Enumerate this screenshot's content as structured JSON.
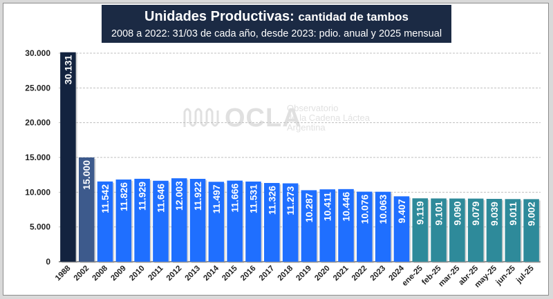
{
  "title": {
    "main": "Unidades Productivas:",
    "main_sub": "cantidad de tambos",
    "subtitle": "2008 a 2022: 31/03 de cada año, desde 2023: pdio. anual y 2025 mensual"
  },
  "logo": {
    "brand": "OCLA",
    "line1": "Observatorio",
    "line2": "de la Cadena Láctea",
    "line3": "Argentina"
  },
  "colors": {
    "bar_1988": "#13233f",
    "bar_2002": "#3d5a8c",
    "bar_annual": "#1f6fff",
    "bar_monthly": "#2e8a9a",
    "title_bg": "#1b2a44"
  },
  "chart_data": {
    "type": "bar",
    "title": "Unidades Productivas: cantidad de tambos",
    "subtitle": "2008 a 2022: 31/03 de cada año, desde 2023: pdio. anual y 2025 mensual",
    "xlabel": "",
    "ylabel": "",
    "ylim": [
      0,
      30000
    ],
    "yticks": [
      "0",
      "5.000",
      "10.000",
      "15.000",
      "20.000",
      "25.000",
      "30.000"
    ],
    "grid": true,
    "categories": [
      "1988",
      "2002",
      "2008",
      "2009",
      "2010",
      "2011",
      "2012",
      "2013",
      "2014",
      "2015",
      "2016",
      "2017",
      "2018",
      "2019",
      "2020",
      "2021",
      "2022",
      "2023",
      "2024",
      "ene-25",
      "feb-25",
      "mar-25",
      "abr-25",
      "may-25",
      "jun-25",
      "jul-25"
    ],
    "values": [
      30131,
      15000,
      11542,
      11826,
      11929,
      11646,
      12003,
      11922,
      11497,
      11666,
      11531,
      11326,
      11273,
      10287,
      10411,
      10446,
      10076,
      10063,
      9407,
      9119,
      9101,
      9090,
      9079,
      9039,
      9011,
      9002
    ],
    "value_labels": [
      "30.131",
      "15.000",
      "11.542",
      "11.826",
      "11.929",
      "11.646",
      "12.003",
      "11.922",
      "11.497",
      "11.666",
      "11.531",
      "11.326",
      "11.273",
      "10.287",
      "10.411",
      "10.446",
      "10.076",
      "10.063",
      "9.407",
      "9.119",
      "9.101",
      "9.090",
      "9.079",
      "9.039",
      "9.011",
      "9.002"
    ]
  }
}
